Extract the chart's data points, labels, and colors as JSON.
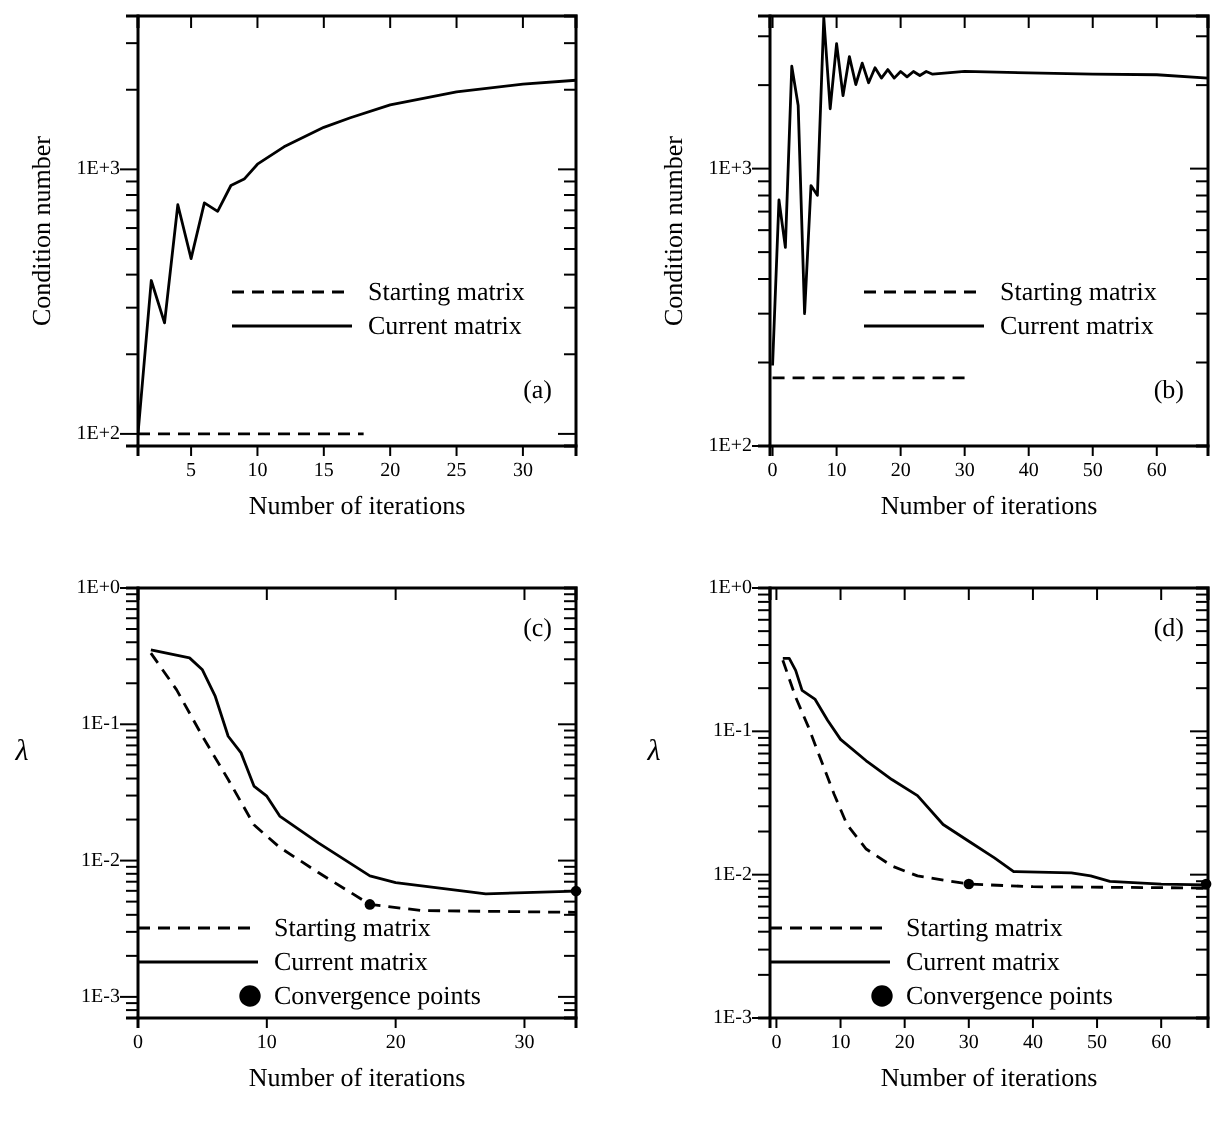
{
  "chart_data": [
    {
      "type": "line",
      "xlabel": "Number of iterations",
      "ylabel": "Condition number",
      "annotations": [
        "(a)"
      ],
      "log": "y",
      "legend": "right",
      "xlim": [
        1,
        34
      ],
      "ylim": [
        90,
        3800
      ],
      "xticks": [
        5,
        10,
        15,
        20,
        25,
        30
      ],
      "yticks": [
        {
          "value": 100,
          "label": "1E+2"
        },
        {
          "value": 200,
          "label": null
        },
        {
          "value": 300,
          "label": null
        },
        {
          "value": 400,
          "label": null
        },
        {
          "value": 500,
          "label": null
        },
        {
          "value": 600,
          "label": null
        },
        {
          "value": 700,
          "label": null
        },
        {
          "value": 800,
          "label": null
        },
        {
          "value": 900,
          "label": null
        },
        {
          "value": 1000,
          "label": "1E+3"
        },
        {
          "value": 2000,
          "label": null
        },
        {
          "value": 3000,
          "label": null
        }
      ],
      "series": [
        {
          "name": "Starting matrix",
          "type": "line",
          "line_style": "dashed",
          "color": "#000000",
          "x": [
            1,
            18
          ],
          "values": [
            100,
            100
          ]
        },
        {
          "name": "Current matrix",
          "type": "line",
          "line_style": "solid",
          "color": "#000000",
          "x": [
            1,
            2,
            3,
            4,
            5,
            6,
            7,
            8,
            9,
            10,
            12,
            15,
            17,
            20,
            25,
            30,
            34
          ],
          "values": [
            100,
            380,
            263,
            735,
            460,
            747,
            694,
            869,
            919,
            1046,
            1217,
            1442,
            1567,
            1754,
            1962,
            2100,
            2172
          ]
        }
      ]
    },
    {
      "type": "line",
      "xlabel": "Number of iterations",
      "ylabel": "Condition number",
      "annotations": [
        "(b)"
      ],
      "log": "y",
      "legend": "right",
      "xlim": [
        -0.4,
        68
      ],
      "ylim": [
        100,
        3550
      ],
      "xticks": [
        0,
        10,
        20,
        30,
        40,
        50,
        60
      ],
      "yticks": [
        {
          "value": 100,
          "label": "1E+2"
        },
        {
          "value": 200,
          "label": null
        },
        {
          "value": 300,
          "label": null
        },
        {
          "value": 400,
          "label": null
        },
        {
          "value": 500,
          "label": null
        },
        {
          "value": 600,
          "label": null
        },
        {
          "value": 700,
          "label": null
        },
        {
          "value": 800,
          "label": null
        },
        {
          "value": 900,
          "label": null
        },
        {
          "value": 1000,
          "label": "1E+3"
        },
        {
          "value": 2000,
          "label": null
        },
        {
          "value": 3000,
          "label": null
        }
      ],
      "series": [
        {
          "name": "Starting matrix",
          "type": "line",
          "line_style": "dashed",
          "color": "#000000",
          "x": [
            0,
            30
          ],
          "values": [
            176,
            176
          ]
        },
        {
          "name": "Current matrix",
          "type": "line",
          "line_style": "solid",
          "color": "#000000",
          "x": [
            0,
            1,
            2,
            3,
            4,
            5,
            6,
            7,
            8,
            9,
            10,
            11,
            12,
            13,
            14,
            15,
            16,
            17,
            18,
            19,
            20,
            21,
            22,
            23,
            24,
            25,
            30,
            40,
            50,
            60,
            68
          ],
          "values": [
            195,
            771,
            520,
            2340,
            1690,
            300,
            869,
            801,
            3500,
            1644,
            2820,
            1832,
            2535,
            2010,
            2400,
            2040,
            2310,
            2120,
            2275,
            2120,
            2240,
            2143,
            2240,
            2167,
            2240,
            2190,
            2240,
            2214,
            2190,
            2180,
            2120
          ]
        }
      ]
    },
    {
      "type": "line",
      "xlabel": "Number of iterations",
      "ylabel": "λ",
      "annotations": [
        "(c)"
      ],
      "log": "y",
      "legend": "bottom left",
      "xlim": [
        0,
        34
      ],
      "ylim": [
        0.0007,
        1
      ],
      "xticks": [
        0,
        10,
        20,
        30
      ],
      "yticks": [
        {
          "value": 0.0007,
          "label": null
        },
        {
          "value": 0.0008,
          "label": null
        },
        {
          "value": 0.0009,
          "label": null
        },
        {
          "value": 0.001,
          "label": "1E-3"
        },
        {
          "value": 0.002,
          "label": null
        },
        {
          "value": 0.003,
          "label": null
        },
        {
          "value": 0.004,
          "label": null
        },
        {
          "value": 0.005,
          "label": null
        },
        {
          "value": 0.006,
          "label": null
        },
        {
          "value": 0.007,
          "label": null
        },
        {
          "value": 0.008,
          "label": null
        },
        {
          "value": 0.009,
          "label": null
        },
        {
          "value": 0.01,
          "label": "1E-2"
        },
        {
          "value": 0.02,
          "label": null
        },
        {
          "value": 0.03,
          "label": null
        },
        {
          "value": 0.04,
          "label": null
        },
        {
          "value": 0.05,
          "label": null
        },
        {
          "value": 0.06,
          "label": null
        },
        {
          "value": 0.07,
          "label": null
        },
        {
          "value": 0.08,
          "label": null
        },
        {
          "value": 0.09,
          "label": null
        },
        {
          "value": 0.1,
          "label": "1E-1"
        },
        {
          "value": 0.2,
          "label": null
        },
        {
          "value": 0.3,
          "label": null
        },
        {
          "value": 0.4,
          "label": null
        },
        {
          "value": 0.5,
          "label": null
        },
        {
          "value": 0.6,
          "label": null
        },
        {
          "value": 0.7,
          "label": null
        },
        {
          "value": 0.8,
          "label": null
        },
        {
          "value": 0.9,
          "label": null
        },
        {
          "value": 1,
          "label": "1E+0"
        }
      ],
      "series": [
        {
          "name": "Starting matrix",
          "type": "line",
          "line_style": "dashed",
          "color": "#000000",
          "x": [
            1,
            3,
            5,
            7,
            9,
            11,
            14,
            18,
            22,
            34
          ],
          "values": [
            0.333,
            0.179,
            0.0817,
            0.0394,
            0.0183,
            0.0125,
            0.00817,
            0.00477,
            0.0043,
            0.00417
          ]
        },
        {
          "name": "Current matrix",
          "type": "line",
          "line_style": "solid",
          "color": "#000000",
          "x": [
            1,
            4,
            5,
            6,
            7,
            8,
            9,
            10,
            11,
            14,
            18,
            20,
            27,
            34
          ],
          "values": [
            0.352,
            0.307,
            0.251,
            0.16,
            0.0817,
            0.0617,
            0.0352,
            0.0297,
            0.0212,
            0.0135,
            0.00772,
            0.0069,
            0.0057,
            0.00597
          ]
        },
        {
          "name": "Convergence points",
          "type": "scatter",
          "marker": "circle",
          "color": "#000000",
          "x": [
            18,
            34
          ],
          "values": [
            0.00477,
            0.00597
          ]
        }
      ]
    },
    {
      "type": "line",
      "xlabel": "Number of iterations",
      "ylabel": "λ",
      "annotations": [
        "(d)"
      ],
      "log": "y",
      "legend": "bottom left",
      "xlim": [
        -1,
        67.3
      ],
      "ylim": [
        0.001,
        1
      ],
      "xticks": [
        0,
        10,
        20,
        30,
        40,
        50,
        60
      ],
      "yticks": [
        {
          "value": 0.001,
          "label": "1E-3"
        },
        {
          "value": 0.002,
          "label": null
        },
        {
          "value": 0.003,
          "label": null
        },
        {
          "value": 0.004,
          "label": null
        },
        {
          "value": 0.005,
          "label": null
        },
        {
          "value": 0.006,
          "label": null
        },
        {
          "value": 0.007,
          "label": null
        },
        {
          "value": 0.008,
          "label": null
        },
        {
          "value": 0.009,
          "label": null
        },
        {
          "value": 0.01,
          "label": "1E-2"
        },
        {
          "value": 0.02,
          "label": null
        },
        {
          "value": 0.03,
          "label": null
        },
        {
          "value": 0.04,
          "label": null
        },
        {
          "value": 0.05,
          "label": null
        },
        {
          "value": 0.06,
          "label": null
        },
        {
          "value": 0.07,
          "label": null
        },
        {
          "value": 0.08,
          "label": null
        },
        {
          "value": 0.09,
          "label": null
        },
        {
          "value": 0.1,
          "label": "1E-1"
        },
        {
          "value": 0.2,
          "label": null
        },
        {
          "value": 0.3,
          "label": null
        },
        {
          "value": 0.4,
          "label": null
        },
        {
          "value": 0.5,
          "label": null
        },
        {
          "value": 0.6,
          "label": null
        },
        {
          "value": 0.7,
          "label": null
        },
        {
          "value": 0.8,
          "label": null
        },
        {
          "value": 0.9,
          "label": null
        },
        {
          "value": 1,
          "label": "1E+0"
        }
      ],
      "series": [
        {
          "name": "Starting matrix",
          "type": "line",
          "line_style": "dashed",
          "color": "#000000",
          "x": [
            1,
            3,
            5,
            7,
            9,
            11,
            14,
            18,
            22,
            30,
            40,
            67
          ],
          "values": [
            0.313,
            0.173,
            0.107,
            0.0623,
            0.0364,
            0.0224,
            0.0151,
            0.0115,
            0.0098,
            0.0086,
            0.00824,
            0.00807
          ]
        },
        {
          "name": "Current matrix",
          "type": "line",
          "line_style": "solid",
          "color": "#000000",
          "x": [
            1,
            2,
            3,
            4,
            6,
            8,
            10,
            14,
            18,
            22,
            26,
            30,
            34,
            37,
            46,
            49,
            52,
            60,
            67
          ],
          "values": [
            0.323,
            0.323,
            0.266,
            0.193,
            0.168,
            0.119,
            0.0879,
            0.0623,
            0.0461,
            0.0356,
            0.0224,
            0.0171,
            0.0131,
            0.0105,
            0.0103,
            0.0098,
            0.00898,
            0.0086,
            0.0085
          ]
        },
        {
          "name": "Convergence points",
          "type": "scatter",
          "marker": "circle",
          "color": "#000000",
          "x": [
            30,
            67
          ],
          "values": [
            0.0086,
            0.0086
          ]
        }
      ]
    }
  ]
}
